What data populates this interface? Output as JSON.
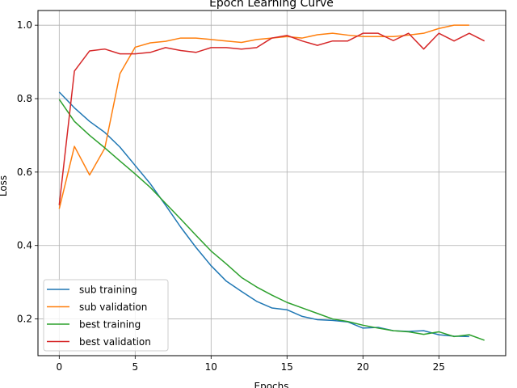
{
  "chart_data": {
    "type": "line",
    "title": "Epoch Learning Curve",
    "xlabel": "Epochs",
    "ylabel": "Loss",
    "xlim": [
      -1.4,
      29.4
    ],
    "ylim": [
      0.1,
      1.04
    ],
    "xticks": [
      0,
      5,
      10,
      15,
      20,
      25
    ],
    "yticks": [
      0.2,
      0.4,
      0.6,
      0.8,
      1.0
    ],
    "grid": true,
    "legend_position": "lower-left",
    "series": [
      {
        "name": "sub training",
        "color": "#1f77b4",
        "x": [
          0,
          1,
          2,
          3,
          4,
          5,
          6,
          7,
          8,
          9,
          10,
          11,
          12,
          13,
          14,
          15,
          16,
          17,
          18,
          19,
          20,
          21,
          22,
          23,
          24,
          25,
          26,
          27
        ],
        "y": [
          0.818,
          0.775,
          0.738,
          0.708,
          0.668,
          0.618,
          0.568,
          0.51,
          0.45,
          0.395,
          0.345,
          0.303,
          0.275,
          0.248,
          0.23,
          0.225,
          0.207,
          0.198,
          0.196,
          0.192,
          0.175,
          0.177,
          0.168,
          0.166,
          0.168,
          0.157,
          0.153,
          0.152
        ]
      },
      {
        "name": "sub validation",
        "color": "#ff7f0e",
        "x": [
          0,
          1,
          2,
          3,
          4,
          5,
          6,
          7,
          8,
          9,
          10,
          11,
          12,
          13,
          14,
          15,
          16,
          17,
          18,
          19,
          20,
          21,
          22,
          23,
          24,
          25,
          26,
          27
        ],
        "y": [
          0.5,
          0.67,
          0.592,
          0.665,
          0.868,
          0.94,
          0.952,
          0.956,
          0.965,
          0.965,
          0.961,
          0.957,
          0.953,
          0.961,
          0.965,
          0.969,
          0.965,
          0.974,
          0.978,
          0.973,
          0.969,
          0.969,
          0.969,
          0.973,
          0.978,
          0.991,
          1.0,
          1.0
        ]
      },
      {
        "name": "best training",
        "color": "#2ca02c",
        "x": [
          0,
          1,
          2,
          3,
          4,
          5,
          6,
          7,
          8,
          9,
          10,
          11,
          12,
          13,
          14,
          15,
          16,
          17,
          18,
          19,
          20,
          21,
          22,
          23,
          24,
          25,
          26,
          27,
          28
        ],
        "y": [
          0.798,
          0.738,
          0.7,
          0.666,
          0.63,
          0.595,
          0.558,
          0.515,
          0.472,
          0.428,
          0.385,
          0.35,
          0.313,
          0.287,
          0.265,
          0.245,
          0.23,
          0.215,
          0.2,
          0.193,
          0.183,
          0.175,
          0.168,
          0.165,
          0.158,
          0.165,
          0.152,
          0.157,
          0.142
        ]
      },
      {
        "name": "best validation",
        "color": "#d62728",
        "x": [
          0,
          1,
          2,
          3,
          4,
          5,
          6,
          7,
          8,
          9,
          10,
          11,
          12,
          13,
          14,
          15,
          16,
          17,
          18,
          19,
          20,
          21,
          22,
          23,
          24,
          25,
          26,
          27,
          28
        ],
        "y": [
          0.51,
          0.875,
          0.93,
          0.935,
          0.922,
          0.922,
          0.926,
          0.939,
          0.931,
          0.926,
          0.939,
          0.939,
          0.935,
          0.939,
          0.965,
          0.972,
          0.957,
          0.945,
          0.957,
          0.957,
          0.978,
          0.978,
          0.958,
          0.978,
          0.935,
          0.978,
          0.957,
          0.978,
          0.957
        ]
      }
    ]
  }
}
